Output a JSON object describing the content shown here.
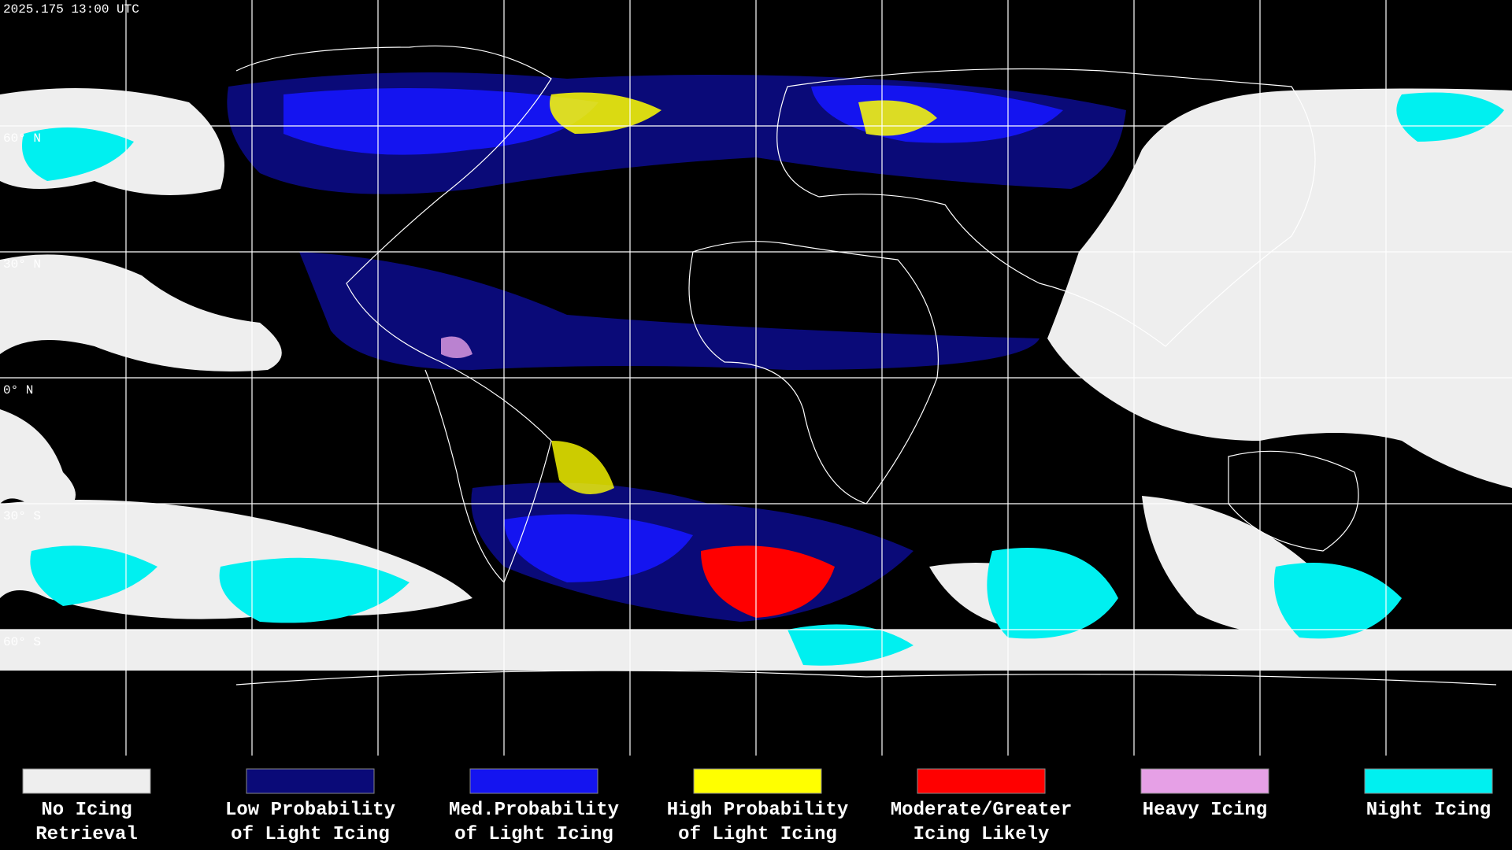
{
  "header": {
    "timestamp": "2025.175 13:00 UTC"
  },
  "map": {
    "latitude_labels": [
      "60° N",
      "30° N",
      "0° N",
      "30° S",
      "60° S"
    ]
  },
  "legend": {
    "items": [
      {
        "color": "#eeeeee",
        "label": [
          "No Icing",
          "Retrieval"
        ]
      },
      {
        "color": "#0a0a78",
        "label": [
          "Low Probability",
          "of Light Icing"
        ]
      },
      {
        "color": "#1414f0",
        "label": [
          "Med.Probability",
          "of Light Icing"
        ]
      },
      {
        "color": "#ffff00",
        "label": [
          "High Probability",
          "of Light Icing"
        ]
      },
      {
        "color": "#ff0000",
        "label": [
          "Moderate/Greater",
          "Icing Likely"
        ]
      },
      {
        "color": "#e6a0e6",
        "label": [
          "Heavy Icing",
          ""
        ]
      },
      {
        "color": "#00f0f0",
        "label": [
          "Night Icing",
          ""
        ]
      }
    ]
  }
}
